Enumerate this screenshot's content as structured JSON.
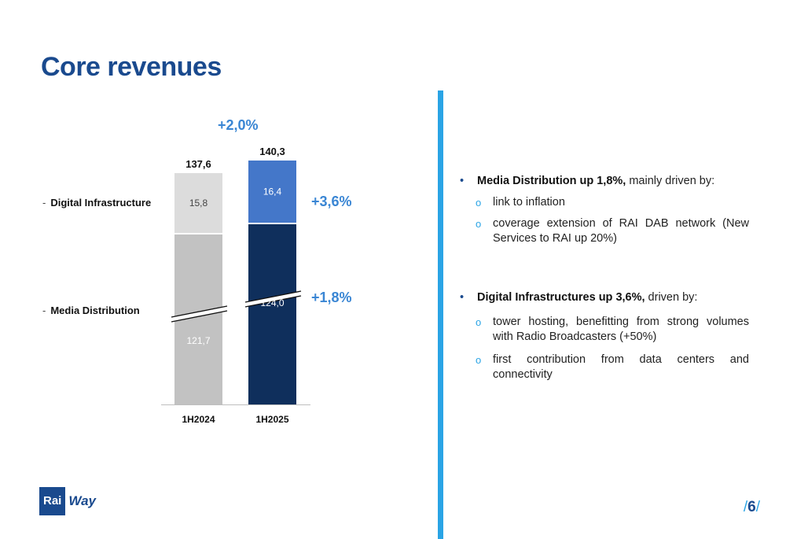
{
  "title": "Core revenues",
  "legend": {
    "digital": "Digital Infrastructure",
    "media": "Media Distribution",
    "dash": "-"
  },
  "growth": {
    "total": "+2,0%",
    "digital": "+3,6%",
    "media": "+1,8%"
  },
  "colors": {
    "title": "#1a4a8e",
    "accent": "#2aa4e5",
    "growth": "#3a86d4",
    "media_2024": "#c2c2c2",
    "digital_2024": "#dcdcdc",
    "media_2025": "#0f2f5c",
    "digital_2025": "#4477c9"
  },
  "chart_data": {
    "type": "bar",
    "stacked": true,
    "broken_axis": true,
    "categories": [
      "1H2024",
      "1H2025"
    ],
    "series": [
      {
        "name": "Media Distribution",
        "values": [
          121.7,
          124.0
        ],
        "labels": [
          "121,7",
          "124,0"
        ]
      },
      {
        "name": "Digital Infrastructure",
        "values": [
          15.8,
          16.4
        ],
        "labels": [
          "15,8",
          "16,4"
        ]
      }
    ],
    "totals": [
      137.6,
      140.3
    ],
    "total_labels": [
      "137,6",
      "140,3"
    ]
  },
  "bullets": [
    {
      "bold": "Media Distribution up 1,8%,",
      "rest": " mainly driven by:",
      "subs": [
        "link to inflation",
        "coverage extension of RAI DAB network (New Services to RAI up 20%)"
      ]
    },
    {
      "bold": "Digital Infrastructures up 3,6%,",
      "rest": " driven by:",
      "subs": [
        "tower hosting, benefitting from strong volumes with Radio Broadcasters (+50%)",
        "first contribution from data centers and connectivity"
      ]
    }
  ],
  "logo": {
    "rai": "Rai",
    "way": "Way"
  },
  "page": {
    "number": "6",
    "slash": "/"
  }
}
